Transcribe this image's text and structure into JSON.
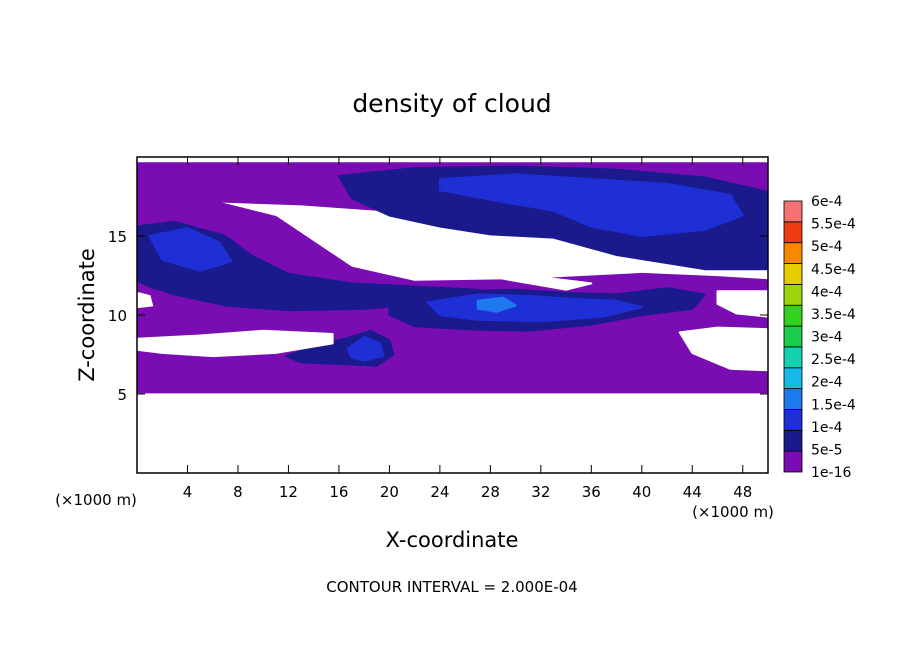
{
  "chart_data": {
    "type": "heatmap",
    "title": "density of cloud",
    "xlabel": "X-coordinate",
    "ylabel": "Z-coordinate",
    "x_units": "(×1000 m)",
    "y_units": "(×1000 m)",
    "xlim": [
      0,
      50
    ],
    "ylim": [
      0,
      20
    ],
    "x_ticks": [
      4,
      8,
      12,
      16,
      20,
      24,
      28,
      32,
      36,
      40,
      44,
      48
    ],
    "y_ticks": [
      5,
      10,
      15
    ],
    "footer": "CONTOUR INTERVAL = 2.000E-04",
    "colorbar": {
      "labels": [
        "1e-16",
        "5e-5",
        "1e-4",
        "1.5e-4",
        "2e-4",
        "2.5e-4",
        "3e-4",
        "3.5e-4",
        "4e-4",
        "4.5e-4",
        "5e-4",
        "5.5e-4",
        "6e-4"
      ],
      "colors": [
        "#7a0cb4",
        "#1a1a8c",
        "#1f2fd6",
        "#1e78ee",
        "#17b9e8",
        "#12d2b0",
        "#19cc4a",
        "#36d11c",
        "#9ad40c",
        "#e6cc00",
        "#f58a00",
        "#ee3c10",
        "#f47272"
      ]
    },
    "regions": [
      {
        "level": 0,
        "desc": "cloud base layer",
        "points": [
          [
            0,
            11.5
          ],
          [
            5,
            11.3
          ],
          [
            12,
            11.1
          ],
          [
            20,
            11.2
          ],
          [
            30,
            11.7
          ],
          [
            38,
            12.0
          ],
          [
            44,
            11.6
          ],
          [
            50,
            11.3
          ],
          [
            50,
            5.1
          ],
          [
            0,
            5.1
          ]
        ]
      },
      {
        "level": 0,
        "desc": "upper cloud layer",
        "points": [
          [
            0,
            19.6
          ],
          [
            50,
            19.6
          ],
          [
            50,
            15.8
          ],
          [
            46,
            15.6
          ],
          [
            40,
            15.3
          ],
          [
            33,
            15.6
          ],
          [
            26,
            16.1
          ],
          [
            20,
            16.6
          ],
          [
            13,
            17.0
          ],
          [
            6,
            17.2
          ],
          [
            0,
            17.3
          ]
        ]
      },
      {
        "level": 0,
        "desc": "left mid sheet",
        "points": [
          [
            0,
            17.3
          ],
          [
            6,
            17.2
          ],
          [
            11,
            16.2
          ],
          [
            14,
            14.6
          ],
          [
            17,
            13.0
          ],
          [
            22,
            12.1
          ],
          [
            30,
            12.2
          ],
          [
            40,
            12.6
          ],
          [
            46,
            12.4
          ],
          [
            50,
            12.2
          ],
          [
            50,
            11.3
          ],
          [
            44,
            11.6
          ],
          [
            38,
            12.0
          ],
          [
            30,
            11.7
          ],
          [
            20,
            11.2
          ],
          [
            12,
            11.1
          ],
          [
            5,
            11.3
          ],
          [
            0,
            11.5
          ]
        ]
      },
      {
        "level": 1,
        "desc": "upper blue band",
        "points": [
          [
            16,
            18.8
          ],
          [
            22,
            19.3
          ],
          [
            30,
            19.4
          ],
          [
            38,
            19.2
          ],
          [
            45,
            18.7
          ],
          [
            50,
            17.8
          ],
          [
            50,
            12.9
          ],
          [
            45,
            12.9
          ],
          [
            38,
            13.8
          ],
          [
            33,
            14.9
          ],
          [
            28,
            15.1
          ],
          [
            24,
            15.6
          ],
          [
            20,
            16.3
          ],
          [
            17,
            17.4
          ]
        ]
      },
      {
        "level": 1,
        "desc": "left blue arc",
        "points": [
          [
            0,
            15.6
          ],
          [
            3,
            15.9
          ],
          [
            7,
            15.0
          ],
          [
            9,
            13.8
          ],
          [
            12,
            12.6
          ],
          [
            17,
            12.0
          ],
          [
            22,
            11.8
          ],
          [
            27,
            11.6
          ],
          [
            24,
            10.8
          ],
          [
            18,
            10.4
          ],
          [
            12,
            10.3
          ],
          [
            7,
            10.6
          ],
          [
            3,
            11.3
          ],
          [
            1,
            11.8
          ],
          [
            0,
            12.2
          ]
        ]
      },
      {
        "level": 1,
        "desc": "mid-level blue cell",
        "points": [
          [
            20,
            10.6
          ],
          [
            23,
            11.2
          ],
          [
            26,
            11.5
          ],
          [
            30,
            11.6
          ],
          [
            34,
            11.4
          ],
          [
            38,
            11.3
          ],
          [
            42,
            11.7
          ],
          [
            45,
            11.3
          ],
          [
            44,
            10.4
          ],
          [
            40,
            10.0
          ],
          [
            36,
            9.4
          ],
          [
            31,
            9.0
          ],
          [
            26,
            9.1
          ],
          [
            22,
            9.3
          ],
          [
            20,
            10.0
          ]
        ]
      },
      {
        "level": 1,
        "desc": "low blue cell",
        "points": [
          [
            11.8,
            7.4
          ],
          [
            14,
            8.0
          ],
          [
            16.5,
            8.5
          ],
          [
            18.5,
            9.0
          ],
          [
            20.0,
            8.4
          ],
          [
            20.3,
            7.5
          ],
          [
            19,
            6.8
          ],
          [
            16,
            6.9
          ],
          [
            13,
            7.0
          ]
        ]
      },
      {
        "level": 2,
        "desc": "upper bright core",
        "points": [
          [
            24,
            18.6
          ],
          [
            30,
            18.9
          ],
          [
            36,
            18.6
          ],
          [
            42,
            18.3
          ],
          [
            47,
            17.6
          ],
          [
            48,
            16.3
          ],
          [
            45,
            15.4
          ],
          [
            40,
            15.0
          ],
          [
            36,
            15.6
          ],
          [
            33,
            16.6
          ],
          [
            28,
            17.3
          ],
          [
            24,
            17.9
          ]
        ]
      },
      {
        "level": 2,
        "desc": "mid bright core",
        "points": [
          [
            23,
            10.8
          ],
          [
            27,
            11.3
          ],
          [
            31,
            11.2
          ],
          [
            35,
            11.0
          ],
          [
            38,
            10.9
          ],
          [
            40,
            10.5
          ],
          [
            37,
            9.9
          ],
          [
            32,
            9.6
          ],
          [
            27,
            9.7
          ],
          [
            24,
            10.0
          ]
        ]
      },
      {
        "level": 2,
        "desc": "left bright core",
        "points": [
          [
            1,
            15.0
          ],
          [
            4,
            15.5
          ],
          [
            6.5,
            14.6
          ],
          [
            7.5,
            13.4
          ],
          [
            5,
            12.8
          ],
          [
            2,
            13.5
          ]
        ]
      },
      {
        "level": 2,
        "desc": "low bright core",
        "points": [
          [
            16.7,
            7.9
          ],
          [
            18,
            8.6
          ],
          [
            19.3,
            8.2
          ],
          [
            19.5,
            7.4
          ],
          [
            18,
            7.1
          ],
          [
            17,
            7.3
          ]
        ]
      },
      {
        "level": 3,
        "desc": "mid brightest spot",
        "points": [
          [
            27,
            10.9
          ],
          [
            29,
            11.1
          ],
          [
            30,
            10.6
          ],
          [
            28.5,
            10.2
          ],
          [
            27,
            10.4
          ]
        ]
      },
      {
        "level": -1,
        "desc": "diagonal clear band",
        "points": [
          [
            21,
            15.7
          ],
          [
            27,
            14.0
          ],
          [
            33,
            12.3
          ],
          [
            36,
            12.0
          ],
          [
            34,
            11.6
          ],
          [
            29,
            12.3
          ],
          [
            24,
            13.9
          ],
          [
            21.5,
            15.2
          ]
        ]
      },
      {
        "level": -1,
        "desc": "left lower clear gap",
        "points": [
          [
            0,
            8.5
          ],
          [
            5,
            8.7
          ],
          [
            10,
            9.0
          ],
          [
            15.5,
            8.8
          ],
          [
            15.5,
            8.2
          ],
          [
            11,
            7.6
          ],
          [
            6,
            7.4
          ],
          [
            2,
            7.6
          ],
          [
            0,
            7.8
          ]
        ]
      },
      {
        "level": -1,
        "desc": "right lower clear gap",
        "points": [
          [
            43,
            8.9
          ],
          [
            46,
            9.2
          ],
          [
            50,
            9.1
          ],
          [
            50,
            6.5
          ],
          [
            47,
            6.6
          ],
          [
            44,
            7.6
          ]
        ]
      },
      {
        "level": -1,
        "desc": "right upper clear notch",
        "points": [
          [
            46,
            11.5
          ],
          [
            50,
            11.5
          ],
          [
            50,
            9.9
          ],
          [
            47.5,
            10.1
          ],
          [
            46,
            10.7
          ]
        ]
      },
      {
        "level": -1,
        "desc": "left clear notch",
        "points": [
          [
            0,
            11.4
          ],
          [
            1,
            11.2
          ],
          [
            1.2,
            10.6
          ],
          [
            0,
            10.5
          ]
        ]
      }
    ]
  }
}
